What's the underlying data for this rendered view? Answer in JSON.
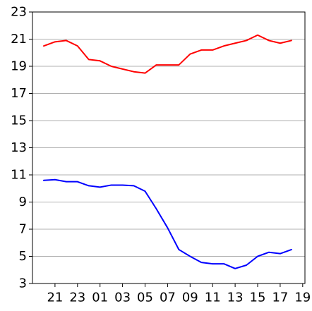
{
  "chart_data": {
    "type": "line",
    "title": "",
    "xlabel": "",
    "ylabel": "",
    "x_tick_labels": [
      "21",
      "23",
      "01",
      "03",
      "05",
      "07",
      "09",
      "11",
      "13",
      "15",
      "17",
      "19"
    ],
    "y_ticks": [
      3,
      5,
      7,
      9,
      11,
      13,
      15,
      17,
      19,
      21,
      23
    ],
    "ylim": [
      3,
      23
    ],
    "x_range": [
      -1,
      23.2
    ],
    "grid": "horizontal",
    "legend": "none",
    "series": [
      {
        "color": "#ff0000",
        "x": [
          0,
          1,
          2,
          3,
          4,
          5,
          6,
          7,
          8,
          9,
          10,
          11,
          12,
          13,
          14,
          15,
          16,
          17,
          18,
          19,
          20,
          21,
          22
        ],
        "values": [
          20.5,
          20.8,
          20.9,
          20.5,
          19.5,
          19.4,
          19.0,
          18.8,
          18.6,
          18.5,
          19.1,
          19.1,
          19.1,
          19.9,
          20.2,
          20.2,
          20.5,
          20.7,
          20.9,
          21.3,
          20.9,
          20.7,
          20.9
        ]
      },
      {
        "color": "#0000ff",
        "x": [
          0,
          1,
          2,
          3,
          4,
          5,
          6,
          7,
          8,
          9,
          10,
          11,
          12,
          13,
          14,
          15,
          16,
          17,
          18,
          19,
          20,
          21,
          22
        ],
        "values": [
          10.6,
          10.65,
          10.5,
          10.5,
          10.2,
          10.1,
          10.25,
          10.25,
          10.2,
          9.8,
          8.5,
          7.1,
          5.5,
          5.0,
          4.55,
          4.45,
          4.45,
          4.1,
          4.35,
          5.0,
          5.3,
          5.2,
          5.5
        ]
      }
    ]
  }
}
